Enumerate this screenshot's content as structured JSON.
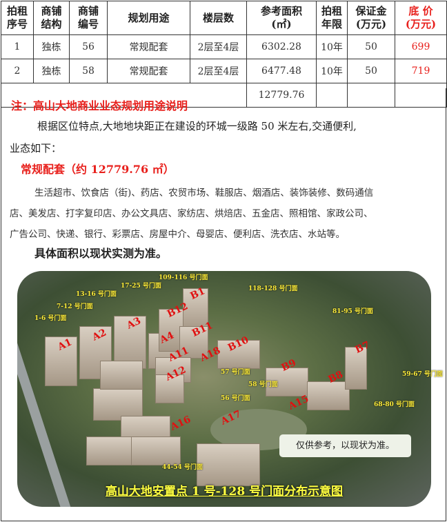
{
  "table": {
    "headers": [
      {
        "l1": "拍租",
        "l2": "序号"
      },
      {
        "l1": "商铺",
        "l2": "结构"
      },
      {
        "l1": "商铺",
        "l2": "编号"
      },
      {
        "l1": "规划用途",
        "l2": ""
      },
      {
        "l1": "楼层数",
        "l2": ""
      },
      {
        "l1": "参考面积",
        "l2": "(㎡)"
      },
      {
        "l1": "拍租",
        "l2": "年限"
      },
      {
        "l1": "保证金",
        "l2": "(万元)"
      },
      {
        "l1": "底 价",
        "l2": "(万元)"
      }
    ],
    "rows": [
      [
        "1",
        "独栋",
        "56",
        "常规配套",
        "2层至4层",
        "6302.28",
        "10年",
        "50",
        "699"
      ],
      [
        "2",
        "独栋",
        "58",
        "常规配套",
        "2层至4层",
        "6477.48",
        "10年",
        "50",
        "719"
      ]
    ],
    "total_area": "12779.76"
  },
  "note": {
    "title": "注：高山大地商业业态规划用途说明",
    "para1": "根据区位特点,大地地块距正在建设的环城一级路 50 米左右,交通便利,",
    "para1b": "业态如下：",
    "category": "常规配套（约 12779.76 ㎡）",
    "list1": "生活超市、饮食店（街)、药店、农贸市场、鞋服店、烟酒店、装饰装修、数码通信",
    "list2": "店、美发店、打字复印店、办公文具店、家纺店、烘焙店、五金店、照相馆、家政公司、",
    "list3": "广告公司、快递、银行、彩票店、房屋中介、母婴店、便利店、洗衣店、水站等。",
    "footer": "具体面积以现状实测为准。"
  },
  "map": {
    "caption": "高山大地安置点 1 号-128 号门面分布示意图",
    "disclaimer": "仅供参考，以现状为准。",
    "shop_labels": [
      "1-6 号门面",
      "7-12 号门面",
      "13-16 号门面",
      "17-25 号门面",
      "109-116 号门面",
      "118-128 号门面",
      "81-95 号门面",
      "59-67 号门面",
      "68-80 号门面",
      "44-54 号门面",
      "57 号门面",
      "56 号门面",
      "58 号门面"
    ],
    "buildings": [
      "A1",
      "A2",
      "A3",
      "A4",
      "B12",
      "B1",
      "B11",
      "B10",
      "A11",
      "A12",
      "A18",
      "B9",
      "B8",
      "B7",
      "A15",
      "A17",
      "A16"
    ]
  },
  "colors": {
    "accent_red": "#e8201c",
    "label_yellow": "#ffee3a"
  }
}
